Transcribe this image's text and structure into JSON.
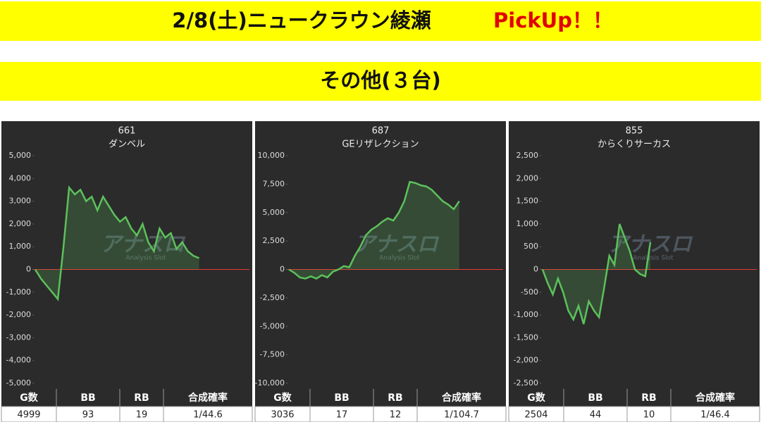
{
  "header": {
    "title": "2/8(土)ニュークラウン綾瀬",
    "highlight": "PickUp！！"
  },
  "section": {
    "title": "その他(３台)"
  },
  "watermark": {
    "logo": "アナスロ",
    "sub": "Analysis Slot"
  },
  "chart_data": [
    {
      "type": "line",
      "title": "661",
      "subtitle": "ダンベル",
      "grid": false,
      "zero_line_color": "#e53935",
      "series": [
        {
          "color": "#5cc15c",
          "values": [
            0,
            -400,
            -700,
            -1000,
            -1300,
            1000,
            3600,
            3300,
            3500,
            3000,
            3200,
            2600,
            3200,
            2800,
            2400,
            2100,
            2300,
            1800,
            1500,
            2000,
            1200,
            800,
            1800,
            1400,
            1600,
            900,
            1200,
            800,
            600,
            500
          ]
        }
      ],
      "ylim": [
        -5000,
        5000
      ],
      "yticks": [
        {
          "value": 5000,
          "label": "5,000"
        },
        {
          "value": 4000,
          "label": "4,000"
        },
        {
          "value": 3000,
          "label": "3,000"
        },
        {
          "value": 2000,
          "label": "2,000"
        },
        {
          "value": 1000,
          "label": "1,000"
        },
        0,
        {
          "value": -1000,
          "label": "-1,000"
        },
        {
          "value": -2000,
          "label": "-2,000"
        },
        {
          "value": -3000,
          "label": "-3,000"
        },
        {
          "value": -4000,
          "label": "-4,000"
        },
        {
          "value": -5000,
          "label": "-5,000"
        }
      ],
      "stats": {
        "columns": [
          "G数",
          "BB",
          "RB",
          "合成確率"
        ],
        "values": [
          4999,
          93,
          19,
          "1/44.6"
        ]
      }
    },
    {
      "type": "line",
      "title": "687",
      "subtitle": "GEリザレクション",
      "grid": false,
      "zero_line_color": "#e53935",
      "series": [
        {
          "color": "#5cc15c",
          "values": [
            0,
            -300,
            -700,
            -800,
            -600,
            -800,
            -500,
            -700,
            -200,
            0,
            300,
            200,
            1200,
            2000,
            3000,
            3500,
            3800,
            4200,
            4500,
            4300,
            5000,
            6000,
            7700,
            7600,
            7400,
            7300,
            7000,
            6500,
            6000,
            5700,
            5300,
            6000
          ]
        }
      ],
      "ylim": [
        -10000,
        10000
      ],
      "yticks": [
        {
          "value": 10000,
          "label": "10,000"
        },
        {
          "value": 7500,
          "label": "7,500"
        },
        {
          "value": 5000,
          "label": "5,000"
        },
        {
          "value": 2500,
          "label": "2,500"
        },
        0,
        {
          "value": -2500,
          "label": "-2,500"
        },
        {
          "value": -5000,
          "label": "-5,000"
        },
        {
          "value": -7500,
          "label": "-7,500"
        },
        {
          "value": -10000,
          "label": "-10,000"
        }
      ],
      "stats": {
        "columns": [
          "G数",
          "BB",
          "RB",
          "合成確率"
        ],
        "values": [
          3036,
          17,
          12,
          "1/104.7"
        ]
      }
    },
    {
      "type": "line",
      "title": "855",
      "subtitle": "からくりサーカス",
      "grid": false,
      "zero_line_color": "#e53935",
      "series": [
        {
          "color": "#5cc15c",
          "values": [
            0,
            -300,
            -550,
            -200,
            -500,
            -900,
            -1100,
            -800,
            -1200,
            -700,
            -900,
            -1050,
            -400,
            300,
            100,
            1000,
            700,
            400,
            0,
            -100,
            -150,
            600
          ]
        }
      ],
      "ylim": [
        -2500,
        2500
      ],
      "yticks": [
        {
          "value": 2500,
          "label": "2,500"
        },
        {
          "value": 2000,
          "label": "2,000"
        },
        {
          "value": 1500,
          "label": "1,500"
        },
        {
          "value": 1000,
          "label": "1,000"
        },
        {
          "value": 500,
          "label": "500"
        },
        0,
        {
          "value": -500,
          "label": "-500"
        },
        {
          "value": -1000,
          "label": "-1,000"
        },
        {
          "value": -1500,
          "label": "-1,500"
        },
        {
          "value": -2000,
          "label": "-2,000"
        },
        {
          "value": -2500,
          "label": "-2,500"
        }
      ],
      "stats": {
        "columns": [
          "G数",
          "BB",
          "RB",
          "合成確率"
        ],
        "values": [
          2504,
          44,
          10,
          "1/46.4"
        ]
      }
    }
  ]
}
